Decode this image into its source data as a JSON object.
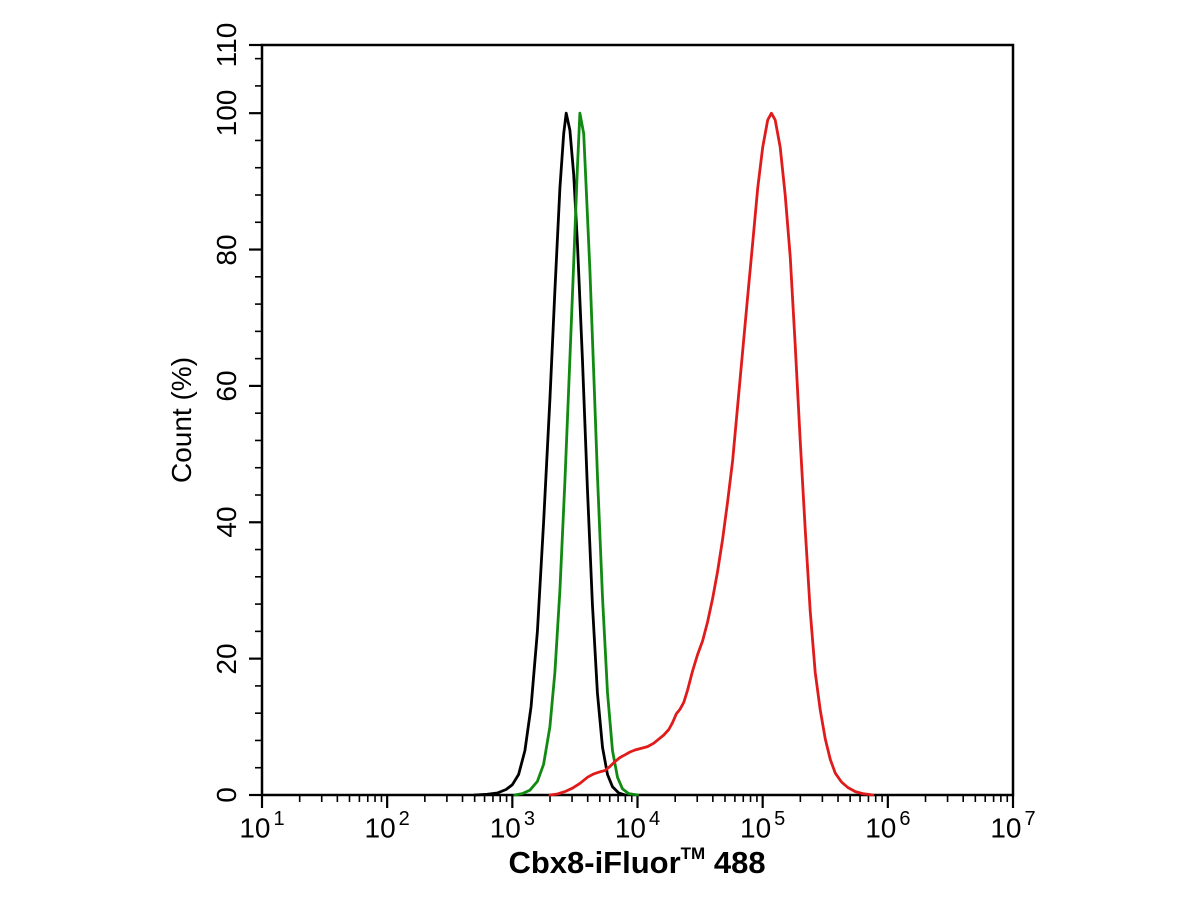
{
  "figure": {
    "background": "#ffffff",
    "text_color": "#000000"
  },
  "chart_data": {
    "type": "line",
    "subtype": "flow-cytometry-overlay-histogram",
    "title": "",
    "xlabel_main": "Cbx8-iFluor",
    "xlabel_sup": "TM",
    "xlabel_suffix": " 488",
    "ylabel": "Count (%)",
    "x_scale": "log10",
    "x_tick_base": "10",
    "x_ticks_exponents": [
      1,
      2,
      3,
      4,
      5,
      6,
      7
    ],
    "x_minor_mantissas": [
      2,
      3,
      4,
      5,
      6,
      7,
      8,
      9
    ],
    "xlim_log10": [
      1,
      7
    ],
    "ylim": [
      0,
      110
    ],
    "y_major_ticks": [
      0,
      20,
      40,
      60,
      80,
      100,
      110
    ],
    "y_minor_step": 4,
    "grid": false,
    "legend": null,
    "frame": true,
    "axis_color": "#000000",
    "curve_stroke_width": 2.8,
    "series": [
      {
        "name": "black-control",
        "color": "#000000",
        "peak_x": 2700,
        "peak_x_log10": 3.43,
        "peak_y_percent": 100,
        "points": [
          [
            2.7,
            0
          ],
          [
            2.8,
            0.1
          ],
          [
            2.88,
            0.3
          ],
          [
            2.95,
            0.8
          ],
          [
            3.0,
            1.5
          ],
          [
            3.05,
            3
          ],
          [
            3.1,
            6.5
          ],
          [
            3.15,
            13
          ],
          [
            3.2,
            24
          ],
          [
            3.25,
            40
          ],
          [
            3.3,
            58
          ],
          [
            3.34,
            74
          ],
          [
            3.38,
            89
          ],
          [
            3.41,
            97
          ],
          [
            3.43,
            100
          ],
          [
            3.46,
            97.5
          ],
          [
            3.49,
            91
          ],
          [
            3.52,
            81
          ],
          [
            3.56,
            64
          ],
          [
            3.6,
            45
          ],
          [
            3.64,
            28
          ],
          [
            3.68,
            15
          ],
          [
            3.72,
            7
          ],
          [
            3.76,
            3
          ],
          [
            3.8,
            1.2
          ],
          [
            3.85,
            0.3
          ],
          [
            3.9,
            0
          ]
        ]
      },
      {
        "name": "green-control",
        "color": "#118a11",
        "peak_x": 3500,
        "peak_x_log10": 3.54,
        "peak_y_percent": 100,
        "points": [
          [
            3.02,
            0
          ],
          [
            3.08,
            0.2
          ],
          [
            3.14,
            0.7
          ],
          [
            3.2,
            2
          ],
          [
            3.25,
            4.5
          ],
          [
            3.3,
            10
          ],
          [
            3.34,
            18
          ],
          [
            3.38,
            30
          ],
          [
            3.42,
            46
          ],
          [
            3.46,
            64
          ],
          [
            3.49,
            78
          ],
          [
            3.52,
            92
          ],
          [
            3.54,
            100
          ],
          [
            3.57,
            97
          ],
          [
            3.59,
            89
          ],
          [
            3.62,
            77
          ],
          [
            3.65,
            62
          ],
          [
            3.68,
            47
          ],
          [
            3.72,
            29
          ],
          [
            3.76,
            15
          ],
          [
            3.8,
            6.5
          ],
          [
            3.84,
            2.6
          ],
          [
            3.88,
            0.9
          ],
          [
            3.93,
            0.2
          ],
          [
            4.0,
            0
          ]
        ]
      },
      {
        "name": "red-sample",
        "color": "#e01b1b",
        "peak_x": 120000,
        "peak_x_log10": 5.07,
        "peak_y_percent": 100,
        "points": [
          [
            3.3,
            0
          ],
          [
            3.36,
            0.15
          ],
          [
            3.42,
            0.5
          ],
          [
            3.48,
            1.0
          ],
          [
            3.54,
            1.7
          ],
          [
            3.6,
            2.6
          ],
          [
            3.65,
            3.1
          ],
          [
            3.7,
            3.4
          ],
          [
            3.74,
            3.6
          ],
          [
            3.78,
            4.2
          ],
          [
            3.82,
            4.9
          ],
          [
            3.86,
            5.5
          ],
          [
            3.9,
            5.9
          ],
          [
            3.94,
            6.3
          ],
          [
            3.98,
            6.6
          ],
          [
            4.04,
            6.9
          ],
          [
            4.08,
            7.1
          ],
          [
            4.13,
            7.6
          ],
          [
            4.17,
            8.2
          ],
          [
            4.21,
            8.8
          ],
          [
            4.25,
            9.6
          ],
          [
            4.28,
            10.6
          ],
          [
            4.31,
            11.9
          ],
          [
            4.34,
            12.6
          ],
          [
            4.37,
            13.6
          ],
          [
            4.4,
            15.4
          ],
          [
            4.44,
            18.2
          ],
          [
            4.48,
            20.6
          ],
          [
            4.52,
            22.6
          ],
          [
            4.56,
            25.4
          ],
          [
            4.6,
            28.8
          ],
          [
            4.64,
            32.8
          ],
          [
            4.68,
            37.5
          ],
          [
            4.72,
            43
          ],
          [
            4.76,
            49
          ],
          [
            4.8,
            57
          ],
          [
            4.84,
            65
          ],
          [
            4.88,
            73
          ],
          [
            4.92,
            81
          ],
          [
            4.96,
            89
          ],
          [
            5.0,
            95
          ],
          [
            5.04,
            99
          ],
          [
            5.07,
            100
          ],
          [
            5.1,
            99
          ],
          [
            5.14,
            95
          ],
          [
            5.18,
            88
          ],
          [
            5.22,
            79
          ],
          [
            5.26,
            66
          ],
          [
            5.3,
            52
          ],
          [
            5.34,
            39
          ],
          [
            5.38,
            27
          ],
          [
            5.42,
            18
          ],
          [
            5.46,
            12.5
          ],
          [
            5.5,
            8.2
          ],
          [
            5.54,
            5.2
          ],
          [
            5.58,
            3.2
          ],
          [
            5.63,
            1.9
          ],
          [
            5.68,
            1.1
          ],
          [
            5.74,
            0.5
          ],
          [
            5.8,
            0.2
          ],
          [
            5.88,
            0
          ]
        ]
      }
    ]
  }
}
